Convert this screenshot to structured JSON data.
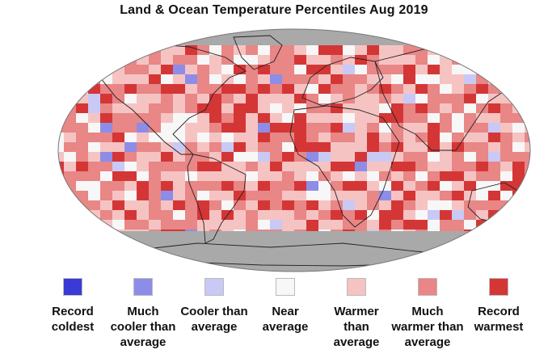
{
  "title": "Land & Ocean Temperature Percentiles Aug 2019",
  "map": {
    "projection": "robinson-style",
    "land_mask_color": "#a9a9a9",
    "coastline_color": "#222222"
  },
  "legend": [
    {
      "label": "Record\ncoldest",
      "color": "#3a3ad6"
    },
    {
      "label": "Much\ncooler than\naverage",
      "color": "#8d8de8"
    },
    {
      "label": "Cooler than\naverage",
      "color": "#c9c9f5"
    },
    {
      "label": "Near\naverage",
      "color": "#f7f7f7"
    },
    {
      "label": "Warmer than\naverage",
      "color": "#f6c3c3"
    },
    {
      "label": "Much\nwarmer than\naverage",
      "color": "#e98686"
    },
    {
      "label": "Record\nwarmest",
      "color": "#d43636"
    }
  ]
}
